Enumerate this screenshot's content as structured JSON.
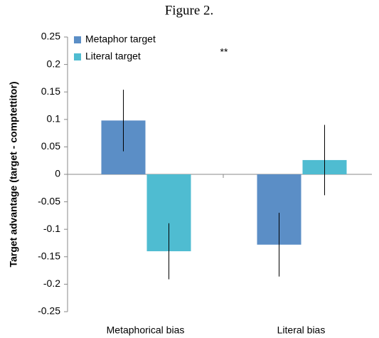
{
  "chart_data": {
    "type": "bar",
    "title": "Figure 2.",
    "y_label": "Target advantage (target - comptettitor)",
    "annotation": "**",
    "categories": [
      "Metaphorical bias",
      "Literal bias"
    ],
    "series": [
      {
        "name": "Metaphor target",
        "color": "#5b8ec6",
        "values": [
          0.098,
          -0.128
        ],
        "errors": [
          0.056,
          0.058
        ]
      },
      {
        "name": "Literal target",
        "color": "#4fbcd1",
        "values": [
          -0.14,
          0.026
        ],
        "errors": [
          0.051,
          0.064
        ]
      }
    ],
    "ylim": [
      -0.25,
      0.25
    ],
    "yticks": [
      -0.25,
      -0.2,
      -0.15,
      -0.1,
      -0.05,
      0,
      0.05,
      0.1,
      0.15,
      0.2,
      0.25
    ],
    "legend": "top-left"
  }
}
